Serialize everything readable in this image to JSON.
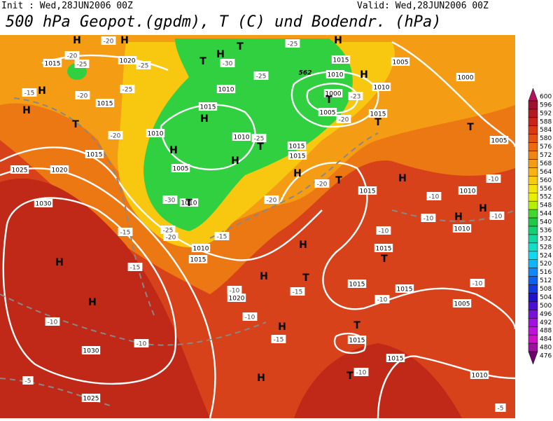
{
  "header": {
    "init": "Init : Wed,28JUN2006 00Z",
    "valid": "Valid: Wed,28JUN2006 00Z",
    "title": "500 hPa Geopot.(gpdm), T (C) und Bodendr. (hPa)"
  },
  "colorbar": {
    "levels": [
      600,
      596,
      592,
      588,
      584,
      580,
      576,
      572,
      568,
      564,
      560,
      556,
      552,
      548,
      544,
      540,
      536,
      532,
      528,
      524,
      520,
      516,
      512,
      508,
      504,
      500,
      496,
      492,
      488,
      484,
      480,
      476
    ],
    "colors": [
      "#b4125a",
      "#a01030",
      "#b41820",
      "#c82418",
      "#d83a14",
      "#e45214",
      "#ec6a10",
      "#f08414",
      "#f49c14",
      "#f8b414",
      "#f8cc10",
      "#f4e40c",
      "#e8f000",
      "#b4f000",
      "#40d830",
      "#20c848",
      "#14d070",
      "#10d8a0",
      "#10e0c8",
      "#10d8f0",
      "#10b4f8",
      "#1088f8",
      "#1060f0",
      "#1438e0",
      "#2010d0",
      "#4810d0",
      "#7810d8",
      "#a010e0",
      "#c010e0",
      "#d010c8",
      "#a010a0",
      "#700070"
    ]
  },
  "map": {
    "pressure_labels": [
      "1015",
      "1020",
      "1015",
      "1015",
      "1025",
      "1020",
      "1030",
      "1010",
      "1015",
      "1010",
      "1010",
      "1005",
      "1010",
      "1010",
      "1015",
      "1020",
      "1015",
      "1015",
      "1015",
      "1010",
      "1000",
      "1005",
      "1010",
      "1005",
      "1000",
      "1015",
      "1005",
      "1015",
      "1010",
      "1010",
      "1015",
      "1015",
      "1015",
      "1005",
      "1030",
      "1025",
      "1015",
      "1015",
      "1010"
    ],
    "temperature_labels": [
      "-25",
      "-20",
      "-20",
      "-25",
      "-25",
      "-20",
      "-15",
      "-20",
      "-30",
      "-25",
      "-25",
      "-25",
      "-30",
      "-25",
      "-20",
      "-15",
      "-20",
      "-20",
      "-15",
      "-15",
      "-10",
      "-15",
      "-10",
      "-15",
      "-10",
      "-10",
      "-5",
      "-10",
      "-10",
      "-10",
      "-10",
      "-10",
      "-10",
      "-10",
      "-10",
      "-5",
      "-23",
      "-20"
    ],
    "height_label": "562",
    "highs": [
      "H",
      "H",
      "H",
      "H",
      "H",
      "H",
      "H",
      "H",
      "H",
      "H",
      "H",
      "H",
      "H",
      "H",
      "H",
      "H",
      "H",
      "H",
      "H",
      "H"
    ],
    "lows": [
      "T",
      "T",
      "T",
      "T",
      "T",
      "T",
      "T",
      "T",
      "T",
      "T",
      "T",
      "T",
      "T"
    ]
  }
}
